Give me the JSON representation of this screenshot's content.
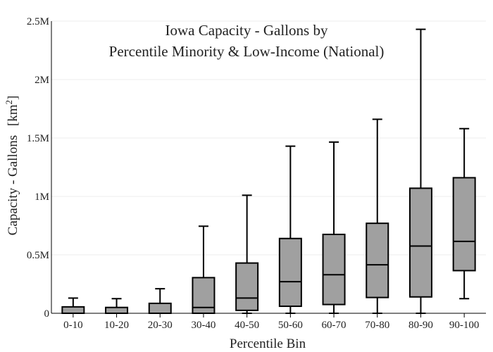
{
  "chart_data": {
    "type": "box",
    "title_lines": [
      "Iowa Capacity - Gallons by",
      "Percentile Minority & Low-Income (National)"
    ],
    "xlabel": "Percentile Bin",
    "ylabel": "Capacity - Gallons",
    "ylabel_unit": "[km",
    "ylabel_unit_sup": "2",
    "ylabel_unit_close": "]",
    "ylim": [
      0,
      2500000
    ],
    "yticks": [
      {
        "value": 0,
        "label": "0"
      },
      {
        "value": 500000,
        "label": "0.5M"
      },
      {
        "value": 1000000,
        "label": "1M"
      },
      {
        "value": 1500000,
        "label": "1.5M"
      },
      {
        "value": 2000000,
        "label": "2M"
      },
      {
        "value": 2500000,
        "label": "2.5M"
      }
    ],
    "grid": true,
    "box_color": "#a0a0a0",
    "line_color": "#000000",
    "categories": [
      "0-10",
      "10-20",
      "20-30",
      "30-40",
      "40-50",
      "50-60",
      "60-70",
      "70-80",
      "80-90",
      "90-100"
    ],
    "boxes": [
      {
        "min": 0,
        "q1": 0,
        "median": 0,
        "q3": 55000,
        "max": 130000
      },
      {
        "min": 0,
        "q1": 0,
        "median": 0,
        "q3": 50000,
        "max": 125000
      },
      {
        "min": 0,
        "q1": 0,
        "median": 0,
        "q3": 85000,
        "max": 210000
      },
      {
        "min": 0,
        "q1": 0,
        "median": 50000,
        "q3": 305000,
        "max": 745000
      },
      {
        "min": 0,
        "q1": 25000,
        "median": 130000,
        "q3": 430000,
        "max": 1010000
      },
      {
        "min": 0,
        "q1": 60000,
        "median": 270000,
        "q3": 640000,
        "max": 1430000
      },
      {
        "min": 0,
        "q1": 75000,
        "median": 330000,
        "q3": 675000,
        "max": 1465000
      },
      {
        "min": 0,
        "q1": 135000,
        "median": 415000,
        "q3": 770000,
        "max": 1660000
      },
      {
        "min": 0,
        "q1": 140000,
        "median": 575000,
        "q3": 1070000,
        "max": 2430000
      },
      {
        "min": 125000,
        "q1": 365000,
        "median": 615000,
        "q3": 1160000,
        "max": 1580000
      }
    ]
  }
}
